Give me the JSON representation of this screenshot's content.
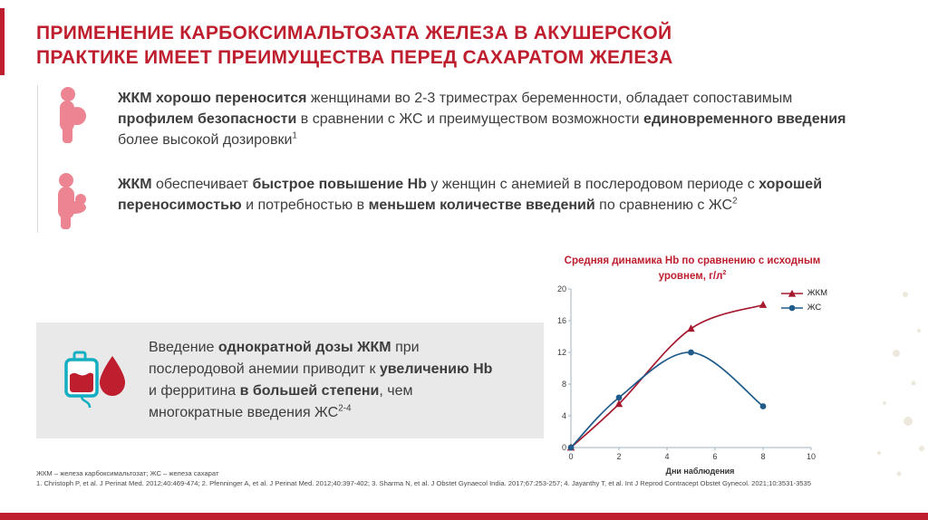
{
  "colors": {
    "accent_red": "#BE1E2D",
    "icon_pink": "#EC8492",
    "callout_gray": "#E9E9E9",
    "series_red": "#A6192E",
    "series_blue": "#1F5C8B",
    "bag_teal": "#14AEC3"
  },
  "title": {
    "line1": "ПРИМЕНЕНИЕ КАРБОКСИМАЛЬТОЗАТА ЖЕЛЕЗА В АКУШЕРСКОЙ",
    "line2": "ПРАКТИКЕ ИМЕЕТ ПРЕИМУЩЕСТВА ПЕРЕД САХАРАТОМ ЖЕЛЕЗА"
  },
  "bullets": [
    {
      "icon": "pregnant-woman-icon",
      "rich": [
        {
          "t": "ЖКМ хорошо переносится",
          "b": true
        },
        {
          "t": " женщинами во 2-3 триместрах беременности, обладает сопоставимым "
        },
        {
          "t": "профилем безопасности",
          "b": true
        },
        {
          "t": " в сравнении с ЖС и преимуществом возможности "
        },
        {
          "t": "единовременного введения",
          "b": true
        },
        {
          "t": " более высокой дозировки"
        },
        {
          "t": "1",
          "sup": true
        }
      ]
    },
    {
      "icon": "mother-with-baby-icon",
      "rich": [
        {
          "t": "ЖКМ",
          "b": true
        },
        {
          "t": " обеспечивает "
        },
        {
          "t": "быстрое повышение Hb",
          "b": true
        },
        {
          "t": " у женщин с анемией в послеродовом периоде с "
        },
        {
          "t": "хорошей переносимостью",
          "b": true
        },
        {
          "t": " и потребностью в "
        },
        {
          "t": "меньшем количестве введений",
          "b": true
        },
        {
          "t": " по сравнению с ЖС"
        },
        {
          "t": "2",
          "sup": true
        }
      ]
    }
  ],
  "callout": {
    "icon": "blood-bag-icon",
    "rich": [
      {
        "t": "Введение "
      },
      {
        "t": "однократной дозы ЖКМ",
        "b": true
      },
      {
        "t": " при послеродовой анемии приводит к "
      },
      {
        "t": "увеличению Hb",
        "b": true
      },
      {
        "t": " и ферритина "
      },
      {
        "t": "в большей степени",
        "b": true
      },
      {
        "t": ", чем многократные введения ЖС"
      },
      {
        "t": "2-4",
        "sup": true
      }
    ]
  },
  "chart": {
    "title_rich": [
      {
        "t": "Средняя динамика Hb по сравнению с исходным уровнем, г/л"
      },
      {
        "t": "2",
        "sup": true
      }
    ]
  },
  "chart_data": {
    "type": "line",
    "title": "Средняя динамика Hb по сравнению с исходным уровнем, г/л2",
    "xlabel": "Дни наблюдения",
    "ylabel": "",
    "xlim": [
      0,
      10
    ],
    "ylim": [
      0,
      20
    ],
    "xticks": [
      0,
      2,
      4,
      6,
      8,
      10
    ],
    "yticks": [
      0,
      4,
      8,
      12,
      16,
      20
    ],
    "grid": false,
    "legend_position": "top-right",
    "series": [
      {
        "name": "ЖКМ",
        "color": "#A6192E",
        "marker": "triangle",
        "x": [
          0,
          2,
          5,
          8
        ],
        "y": [
          0,
          5.5,
          15,
          18
        ]
      },
      {
        "name": "ЖС",
        "color": "#1F5C8B",
        "marker": "circle",
        "x": [
          0,
          2,
          5,
          8
        ],
        "y": [
          0,
          6.3,
          12,
          5.2
        ]
      }
    ]
  },
  "footnote": {
    "abbreviations": "ЖКМ – железа карбоксимальтозат; ЖС – железа сахарат",
    "references": "1. Christoph P, et al. J Perinat Med. 2012;40:469-474; 2. Pfenninger A, et al. J Perinat Med. 2012;40:397-402; 3. Sharma N, et al. J Obstet Gynaecol India. 2017;67:253-257; 4. Jayanthy T, et al. Int J Reprod Contracept Obstet Gynecol. 2021;10:3531-3535"
  }
}
